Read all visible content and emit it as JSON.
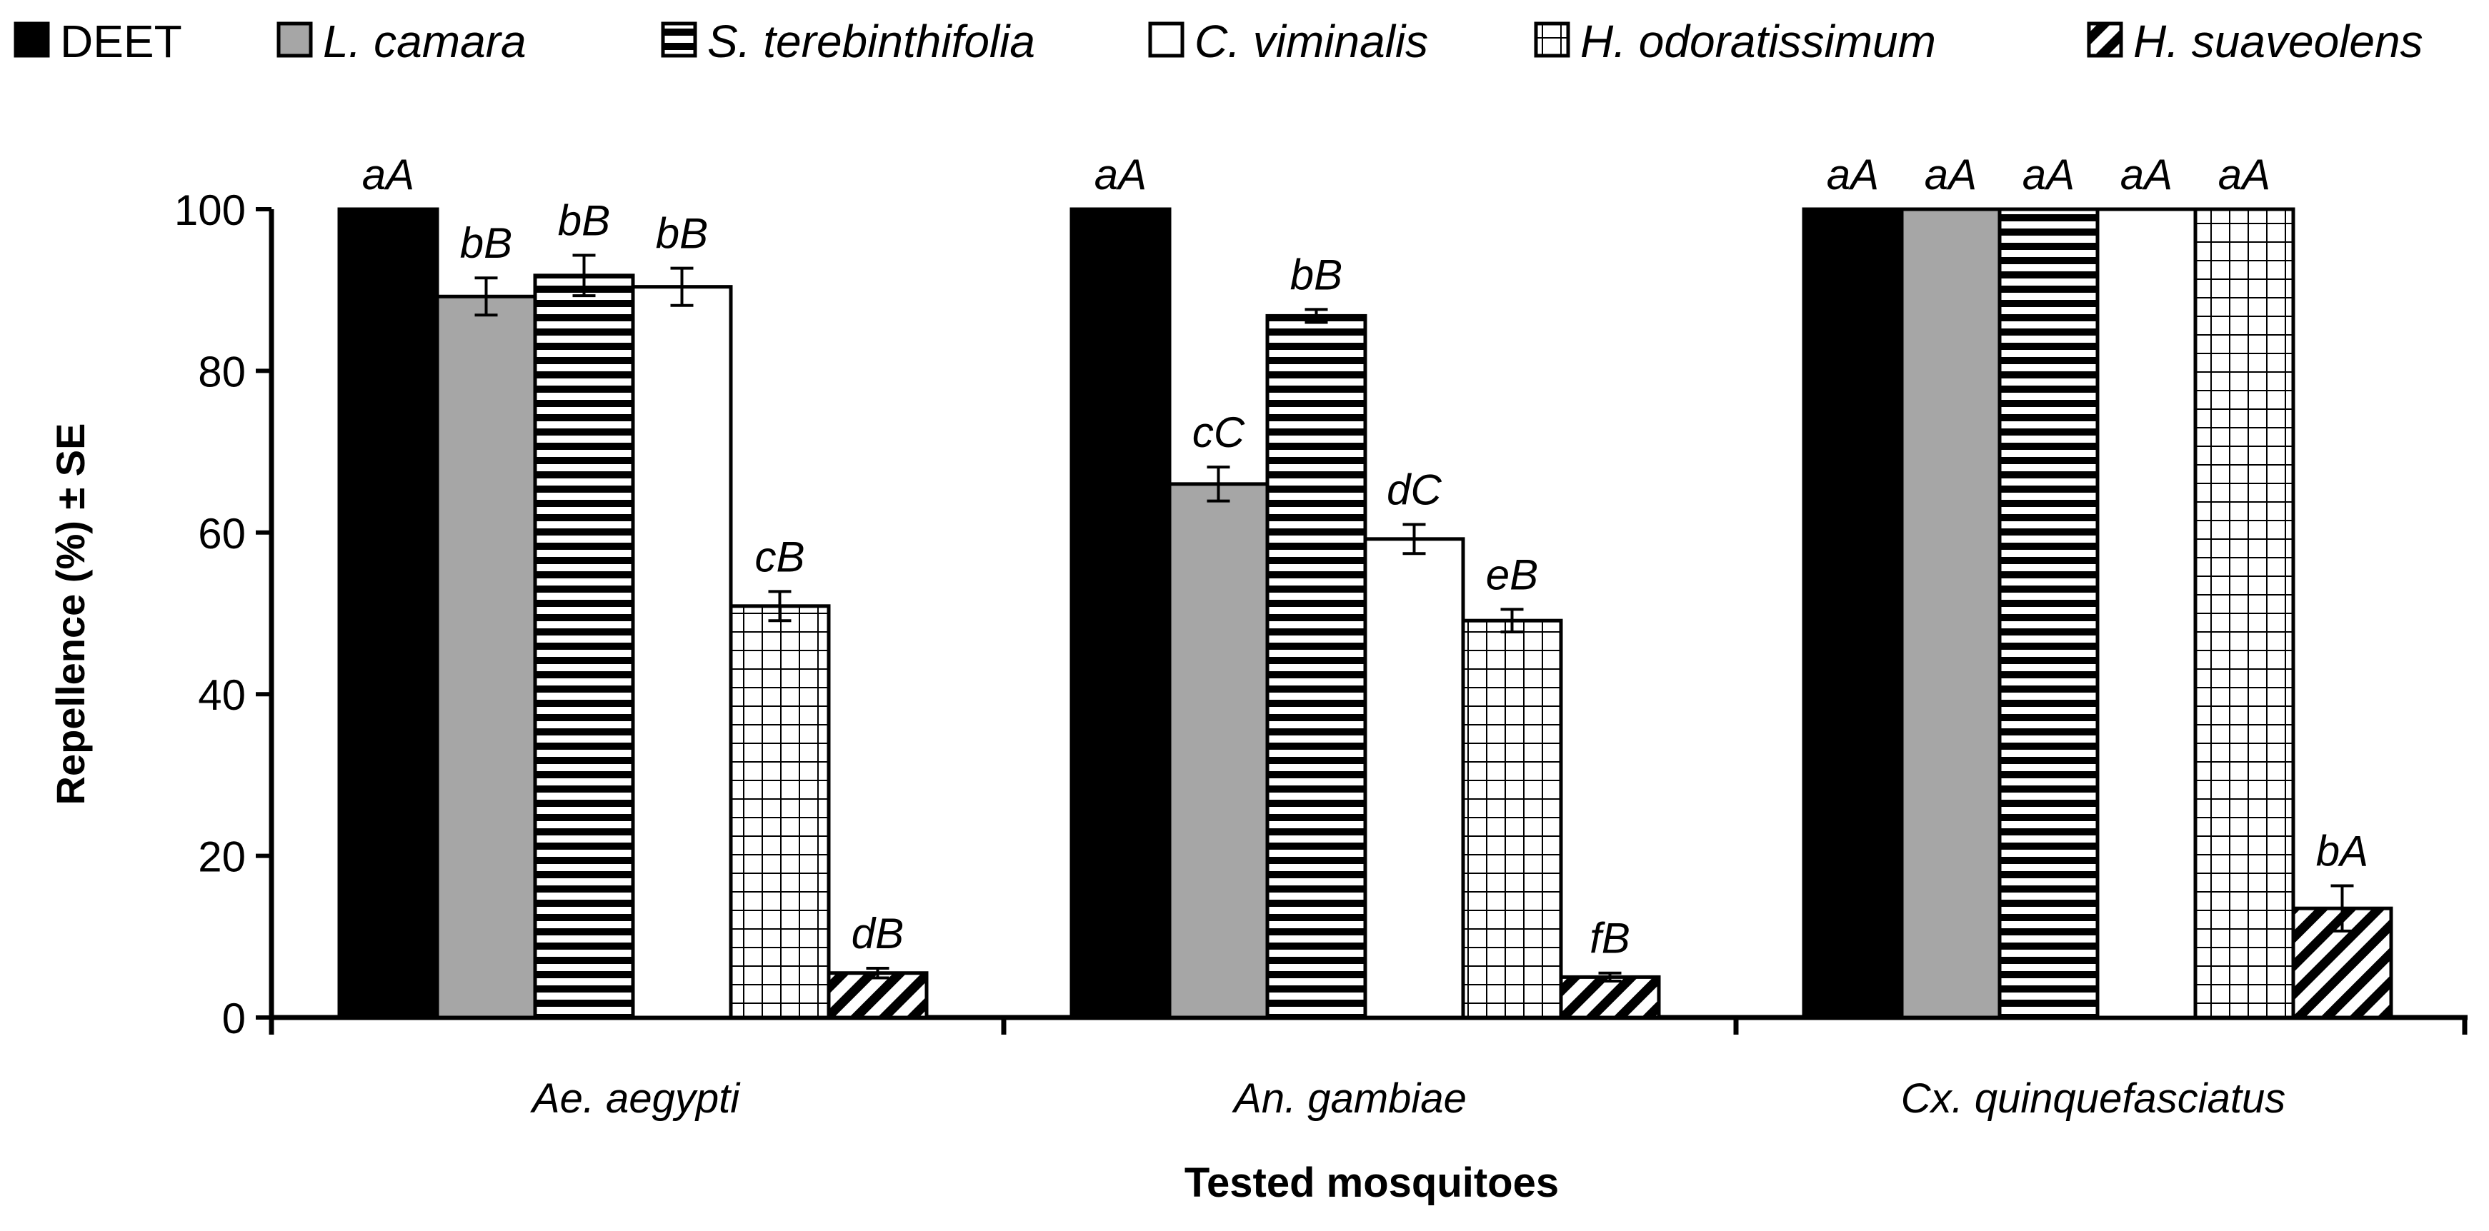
{
  "chart_data": {
    "type": "bar",
    "title": "",
    "xlabel": "Tested mosquitoes",
    "ylabel": "Repellence (%) ± SE",
    "ylim": [
      0,
      100
    ],
    "yticks": [
      0,
      20,
      40,
      60,
      80,
      100
    ],
    "grid": false,
    "legend_position": "top",
    "categories": [
      "Ae. aegypti",
      "An. gambiae",
      "Cx. quinquefasciatus"
    ],
    "series": [
      {
        "name": "DEET",
        "pattern": "solid-black",
        "values": [
          100,
          100,
          100
        ],
        "errors": [
          0,
          0,
          0
        ],
        "labels": [
          "aA",
          "aA",
          "aA"
        ]
      },
      {
        "name": "L. camara",
        "pattern": "solid-gray",
        "values": [
          89.2,
          66.0,
          100
        ],
        "errors": [
          2.3,
          2.1,
          0
        ],
        "labels": [
          "bB",
          "cC",
          "aA"
        ]
      },
      {
        "name": "S. terebinthifolia",
        "pattern": "horizontal-stripes",
        "values": [
          91.8,
          86.8,
          100
        ],
        "errors": [
          2.5,
          0.8,
          0
        ],
        "labels": [
          "bB",
          "bB",
          "aA"
        ]
      },
      {
        "name": "C. viminalis",
        "pattern": "white",
        "values": [
          90.4,
          59.2,
          100
        ],
        "errors": [
          2.3,
          1.8,
          0
        ],
        "labels": [
          "bB",
          "dC",
          "aA"
        ]
      },
      {
        "name": "H. odoratissimum",
        "pattern": "grid",
        "values": [
          50.9,
          49.1,
          100
        ],
        "errors": [
          1.8,
          1.4,
          0
        ],
        "labels": [
          "cB",
          "eB",
          "aA"
        ]
      },
      {
        "name": "H. suaveolens",
        "pattern": "diagonal-hatch",
        "values": [
          5.5,
          5.0,
          13.5
        ],
        "errors": [
          0.6,
          0.5,
          2.8
        ],
        "labels": [
          "dB",
          "fB",
          "bA"
        ]
      }
    ]
  }
}
